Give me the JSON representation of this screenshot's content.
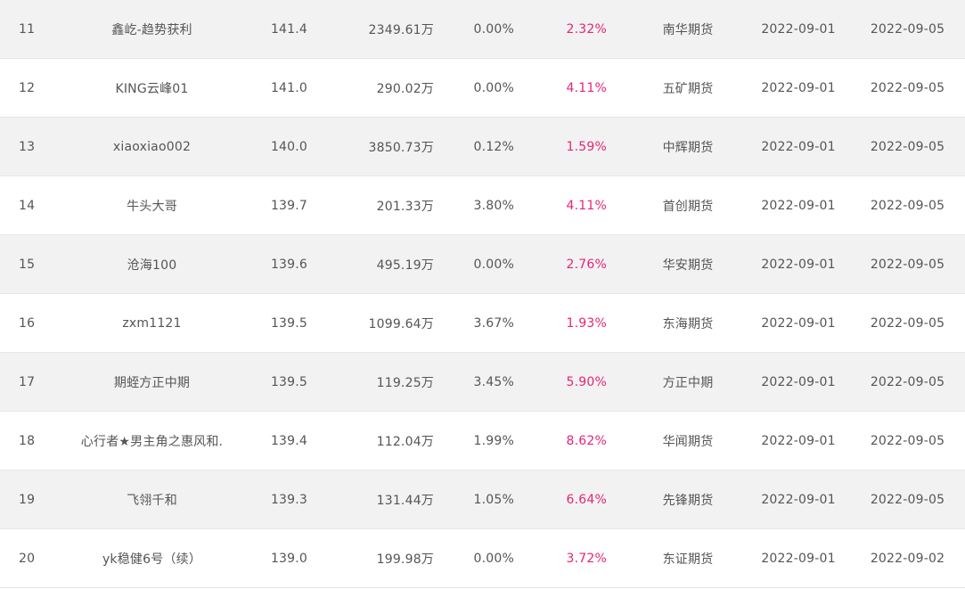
{
  "rows": [
    {
      "rank": "11",
      "name": "鑫屹-趋势获利",
      "score": "141.4",
      "equity": "2349.61万",
      "drawdown": "0.00%",
      "return": "2.32%",
      "broker": "南华期货",
      "start": "2022-09-01",
      "end": "2022-09-05"
    },
    {
      "rank": "12",
      "name": "KING云峰01",
      "score": "141.0",
      "equity": "290.02万",
      "drawdown": "0.00%",
      "return": "4.11%",
      "broker": "五矿期货",
      "start": "2022-09-01",
      "end": "2022-09-05"
    },
    {
      "rank": "13",
      "name": "xiaoxiao002",
      "score": "140.0",
      "equity": "3850.73万",
      "drawdown": "0.12%",
      "return": "1.59%",
      "broker": "中辉期货",
      "start": "2022-09-01",
      "end": "2022-09-05"
    },
    {
      "rank": "14",
      "name": "牛头大哥",
      "score": "139.7",
      "equity": "201.33万",
      "drawdown": "3.80%",
      "return": "4.11%",
      "broker": "首创期货",
      "start": "2022-09-01",
      "end": "2022-09-05"
    },
    {
      "rank": "15",
      "name": "沧海100",
      "score": "139.6",
      "equity": "495.19万",
      "drawdown": "0.00%",
      "return": "2.76%",
      "broker": "华安期货",
      "start": "2022-09-01",
      "end": "2022-09-05"
    },
    {
      "rank": "16",
      "name": "zxm1121",
      "score": "139.5",
      "equity": "1099.64万",
      "drawdown": "3.67%",
      "return": "1.93%",
      "broker": "东海期货",
      "start": "2022-09-01",
      "end": "2022-09-05"
    },
    {
      "rank": "17",
      "name": "期蛭方正中期",
      "score": "139.5",
      "equity": "119.25万",
      "drawdown": "3.45%",
      "return": "5.90%",
      "broker": "方正中期",
      "start": "2022-09-01",
      "end": "2022-09-05"
    },
    {
      "rank": "18",
      "name": "心行者★男主角之惠风和.",
      "score": "139.4",
      "equity": "112.04万",
      "drawdown": "1.99%",
      "return": "8.62%",
      "broker": "华闻期货",
      "start": "2022-09-01",
      "end": "2022-09-05"
    },
    {
      "rank": "19",
      "name": "飞翎千和",
      "score": "139.3",
      "equity": "131.44万",
      "drawdown": "1.05%",
      "return": "6.64%",
      "broker": "先锋期货",
      "start": "2022-09-01",
      "end": "2022-09-05"
    },
    {
      "rank": "20",
      "name": "yk稳健6号（续）",
      "score": "139.0",
      "equity": "199.98万",
      "drawdown": "0.00%",
      "return": "3.72%",
      "broker": "东证期货",
      "start": "2022-09-01",
      "end": "2022-09-02"
    }
  ],
  "colors": {
    "row_alt_bg": "#f2f2f2",
    "row_bg": "#ffffff",
    "text": "#555555",
    "return_accent": "#e4257a",
    "divider": "#e6e6e6"
  }
}
